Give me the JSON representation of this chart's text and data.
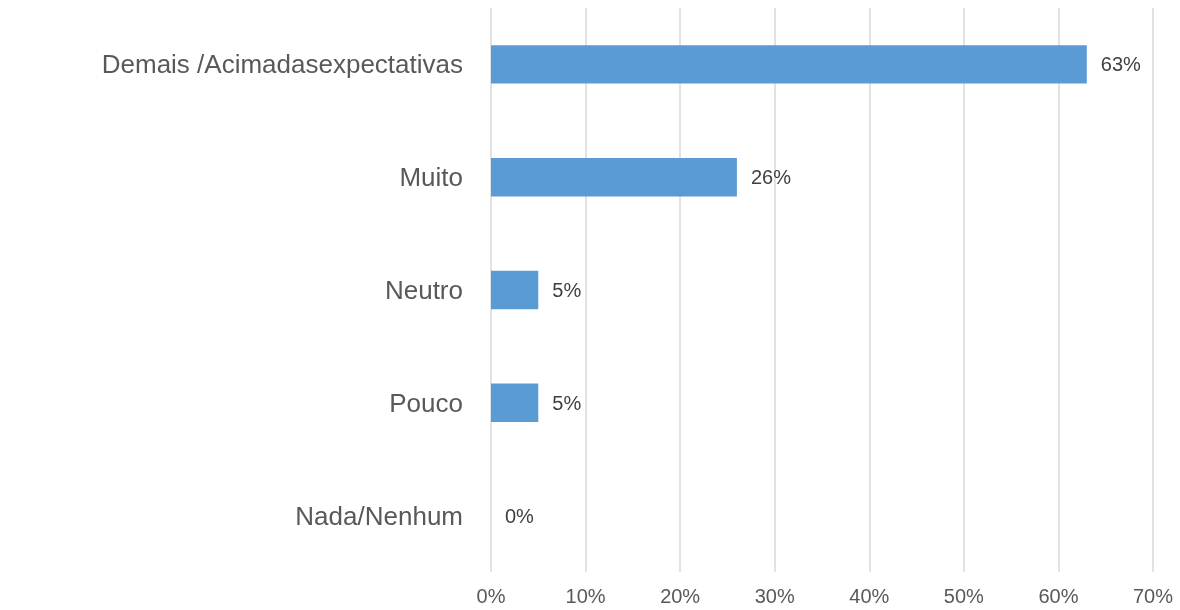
{
  "chart_data": {
    "type": "bar",
    "orientation": "horizontal",
    "categories": [
      "Demais /Acimadasexpectativas",
      "Muito",
      "Neutro",
      "Pouco",
      "Nada/Nenhum"
    ],
    "values": [
      63,
      26,
      5,
      5,
      0
    ],
    "value_labels": [
      "63%",
      "26%",
      "5%",
      "5%",
      "0%"
    ],
    "color": "#5b9bd5",
    "xlim": [
      0,
      70
    ],
    "xticks": [
      {
        "value": 0,
        "label": "0%"
      },
      {
        "value": 10,
        "label": "10%"
      },
      {
        "value": 20,
        "label": "20%"
      },
      {
        "value": 30,
        "label": "30%"
      },
      {
        "value": 40,
        "label": "40%"
      },
      {
        "value": 50,
        "label": "50%"
      },
      {
        "value": 60,
        "label": "60%"
      },
      {
        "value": 70,
        "label": "70%"
      }
    ],
    "grid": "x"
  }
}
